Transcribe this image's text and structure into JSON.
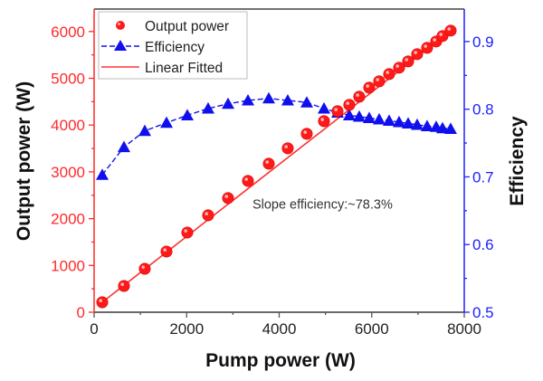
{
  "chart_data": {
    "type": "scatter",
    "title": "",
    "xlabel": "Pump power (W)",
    "ylabel": "Output power (W)",
    "y2label": "Efficiency",
    "xlim": [
      0,
      8000
    ],
    "ylim": [
      0,
      6480
    ],
    "y2lim": [
      0.5,
      0.948
    ],
    "xticks": [
      "0",
      "2000",
      "4000",
      "6000",
      "8000"
    ],
    "yticks": [
      "0",
      "1000",
      "2000",
      "3000",
      "4000",
      "5000",
      "6000"
    ],
    "y2ticks": [
      "0.5",
      "0.6",
      "0.7",
      "0.8",
      "0.9"
    ],
    "grid": true,
    "legend_position": "top-left",
    "colors": {
      "output_power": "#ff1a1a",
      "efficiency": "#1010ee",
      "linear_fit": "#ff3333",
      "left_axis": "#ff2a2a",
      "right_axis": "#2020ff"
    },
    "x": [
      176,
      645,
      1095,
      1565,
      2014,
      2464,
      2895,
      3325,
      3775,
      4185,
      4596,
      4968,
      5261,
      5515,
      5730,
      5946,
      6161,
      6376,
      6591,
      6787,
      6982,
      7197,
      7393,
      7530,
      7706
    ],
    "series": [
      {
        "name": "Output power",
        "axis": "left",
        "marker": "circle",
        "values": [
          213,
          561,
          929,
          1297,
          1703,
          2071,
          2439,
          2806,
          3174,
          3503,
          3813,
          4084,
          4297,
          4432,
          4606,
          4800,
          4935,
          5090,
          5226,
          5361,
          5516,
          5651,
          5787,
          5903,
          6019
        ]
      },
      {
        "name": "Efficiency",
        "axis": "right",
        "marker": "triangle",
        "line": "dashed",
        "values": [
          0.703,
          0.744,
          0.768,
          0.78,
          0.791,
          0.801,
          0.808,
          0.813,
          0.816,
          0.813,
          0.81,
          0.801,
          0.795,
          0.791,
          0.789,
          0.787,
          0.785,
          0.783,
          0.781,
          0.779,
          0.777,
          0.775,
          0.774,
          0.772,
          0.771
        ]
      },
      {
        "name": "Linear Fitted",
        "axis": "left",
        "marker": "none",
        "line": "solid",
        "fit": {
          "x": [
            176,
            7706
          ],
          "y": [
            213,
            6019
          ]
        }
      }
    ],
    "legend": [
      "Output power",
      "Efficiency",
      "Linear Fitted"
    ],
    "annotations": [
      {
        "text": "Slope efficiency:~78.3%",
        "x": 3500,
        "y2": 0.66
      }
    ]
  }
}
